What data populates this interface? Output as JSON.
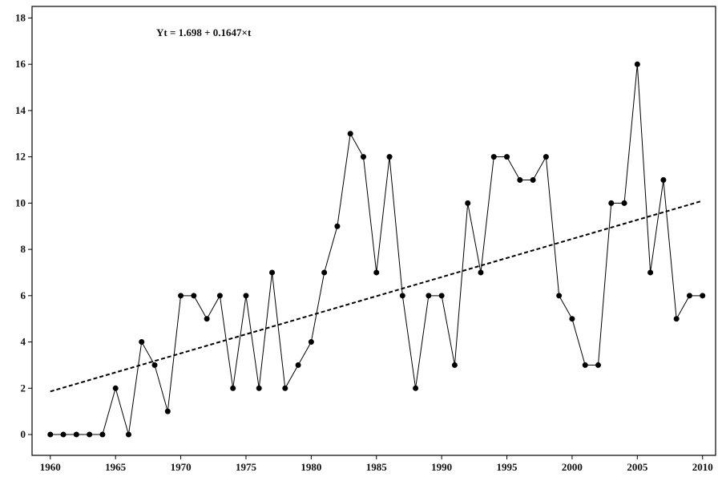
{
  "chart_data": {
    "type": "line",
    "annotation": "Yt = 1.698 + 0.1647×t",
    "x": [
      1960,
      1961,
      1962,
      1963,
      1964,
      1965,
      1966,
      1967,
      1968,
      1969,
      1970,
      1971,
      1972,
      1973,
      1974,
      1975,
      1976,
      1977,
      1978,
      1979,
      1980,
      1981,
      1982,
      1983,
      1984,
      1985,
      1986,
      1987,
      1988,
      1989,
      1990,
      1991,
      1992,
      1993,
      1994,
      1995,
      1996,
      1997,
      1998,
      1999,
      2000,
      2001,
      2002,
      2003,
      2004,
      2005,
      2006,
      2007,
      2008,
      2009,
      2010
    ],
    "series": [
      {
        "color": "#000000",
        "values": [
          0,
          0,
          0,
          0,
          0,
          2,
          0,
          4,
          3,
          1,
          6,
          6,
          5,
          6,
          2,
          6,
          2,
          7,
          2,
          3,
          4,
          7,
          9,
          13,
          12,
          7,
          12,
          6,
          2,
          6,
          6,
          3,
          10,
          7,
          12,
          12,
          11,
          11,
          12,
          6,
          5,
          3,
          3,
          10,
          10,
          16,
          7,
          11,
          5,
          6,
          6
        ]
      }
    ],
    "trend": {
      "x": [
        1960,
        2010
      ],
      "values": [
        1.86,
        10.1
      ],
      "color": "#000000"
    },
    "xlim": [
      1958.6,
      2011
    ],
    "ylim": [
      -0.9,
      18.5
    ],
    "xticks": [
      1960,
      1965,
      1970,
      1975,
      1980,
      1985,
      1990,
      1995,
      2000,
      2005,
      2010
    ],
    "yticks": [
      0,
      2,
      4,
      6,
      8,
      10,
      12,
      14,
      16,
      18
    ]
  }
}
